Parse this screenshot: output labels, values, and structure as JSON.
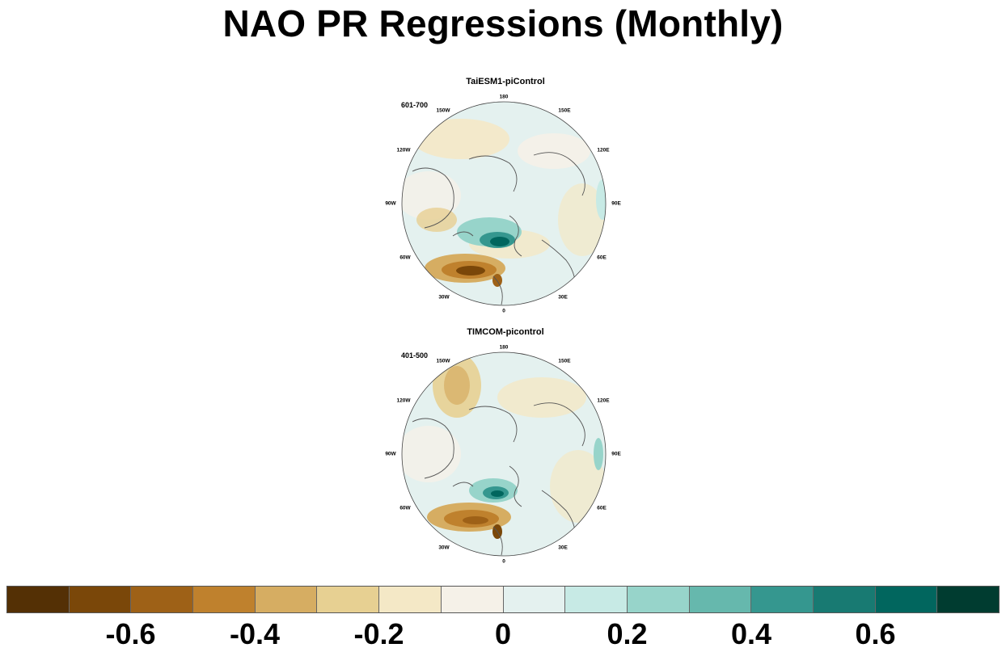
{
  "title": "NAO PR Regressions (Monthly)",
  "panels": [
    {
      "title": "TaiESM1-piControl",
      "period": "601-700"
    },
    {
      "title": "TIMCOM-picontrol",
      "period": "401-500"
    }
  ],
  "lon_labels": [
    "180",
    "150E",
    "120E",
    "90E",
    "60E",
    "30E",
    "0",
    "30W",
    "60W",
    "90W",
    "120W",
    "150W"
  ],
  "colorbar": {
    "colors": [
      "#543005",
      "#7a4709",
      "#9e6117",
      "#bf812d",
      "#d6ad62",
      "#e7d092",
      "#f4e8c6",
      "#f5f1e8",
      "#e4f1ef",
      "#c7eae5",
      "#97d4ca",
      "#66b8ad",
      "#35978f",
      "#187a72",
      "#01665e",
      "#003c30"
    ],
    "labels": [
      "-0.6",
      "-0.4",
      "-0.2",
      "0",
      "0.2",
      "0.4",
      "0.6"
    ]
  }
}
